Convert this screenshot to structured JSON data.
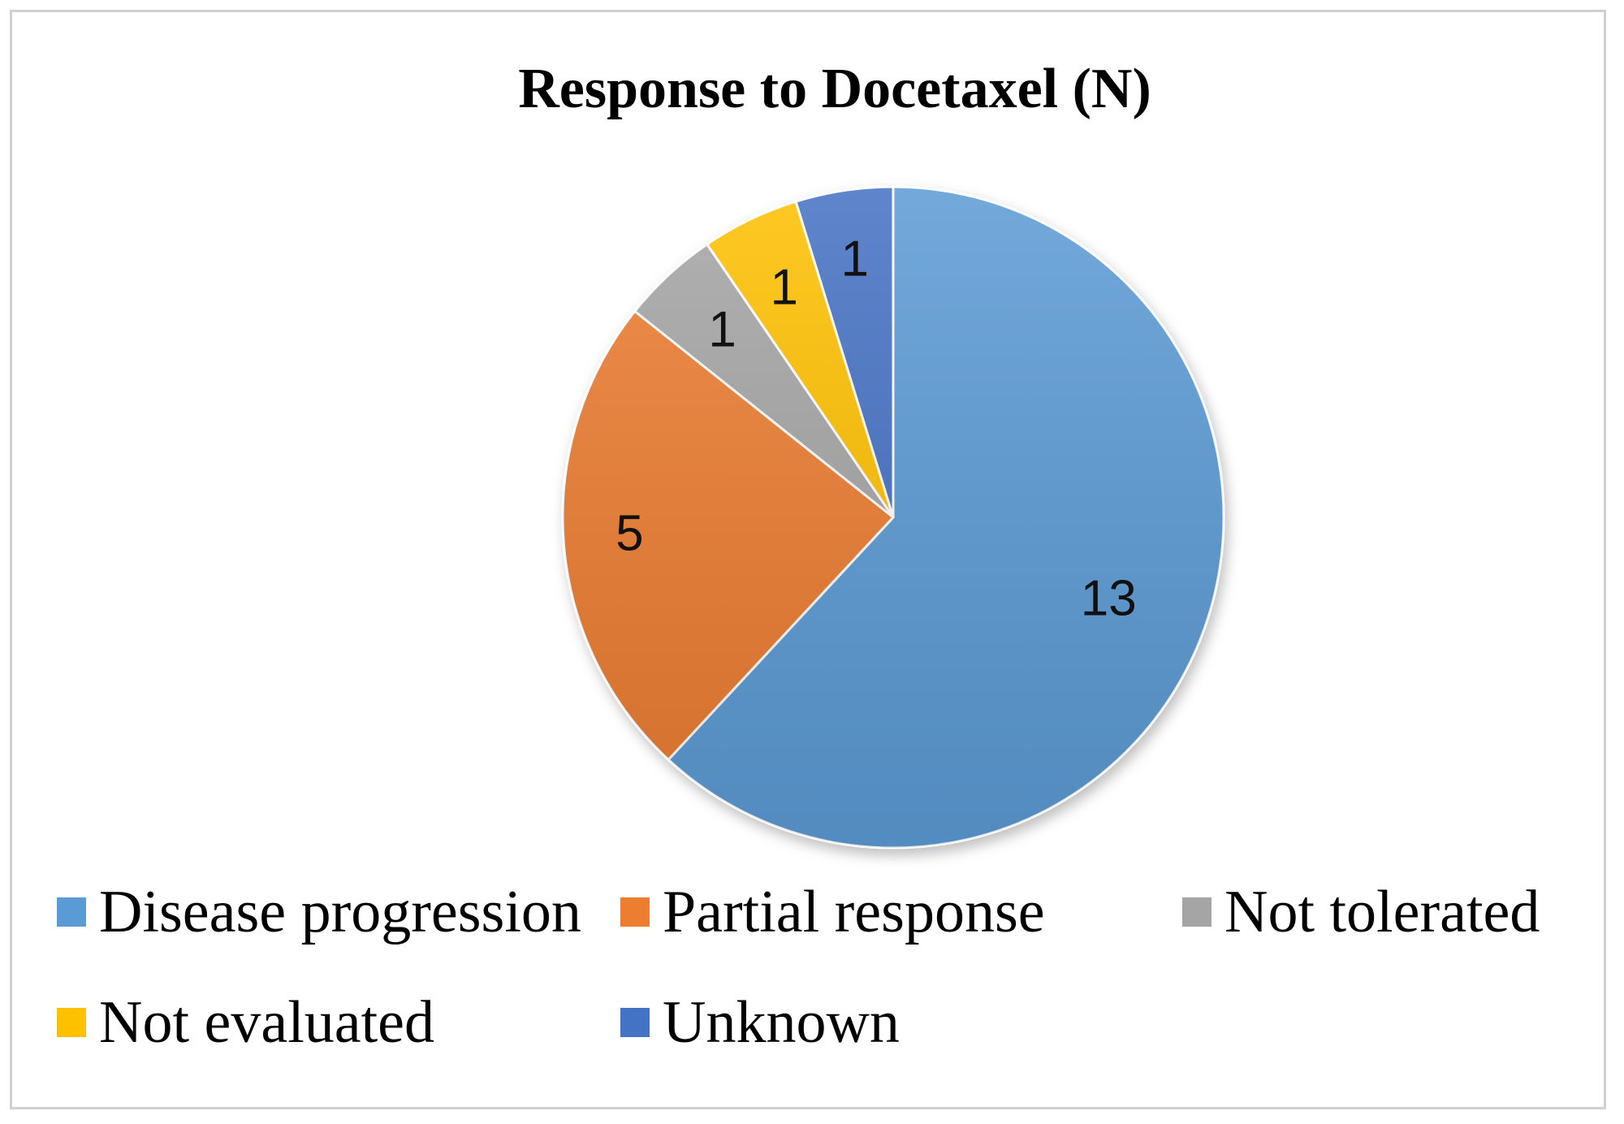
{
  "chart_data": {
    "type": "pie",
    "title": "Response to Docetaxel (N)",
    "categories": [
      "Disease progression",
      "Partial response",
      "Not tolerated",
      "Not evaluated",
      "Unknown"
    ],
    "values": [
      13,
      5,
      1,
      1,
      1
    ],
    "colors": [
      "#5b9bd5",
      "#ed7d31",
      "#a5a5a5",
      "#ffc000",
      "#4472c4"
    ],
    "legend_position": "bottom"
  }
}
